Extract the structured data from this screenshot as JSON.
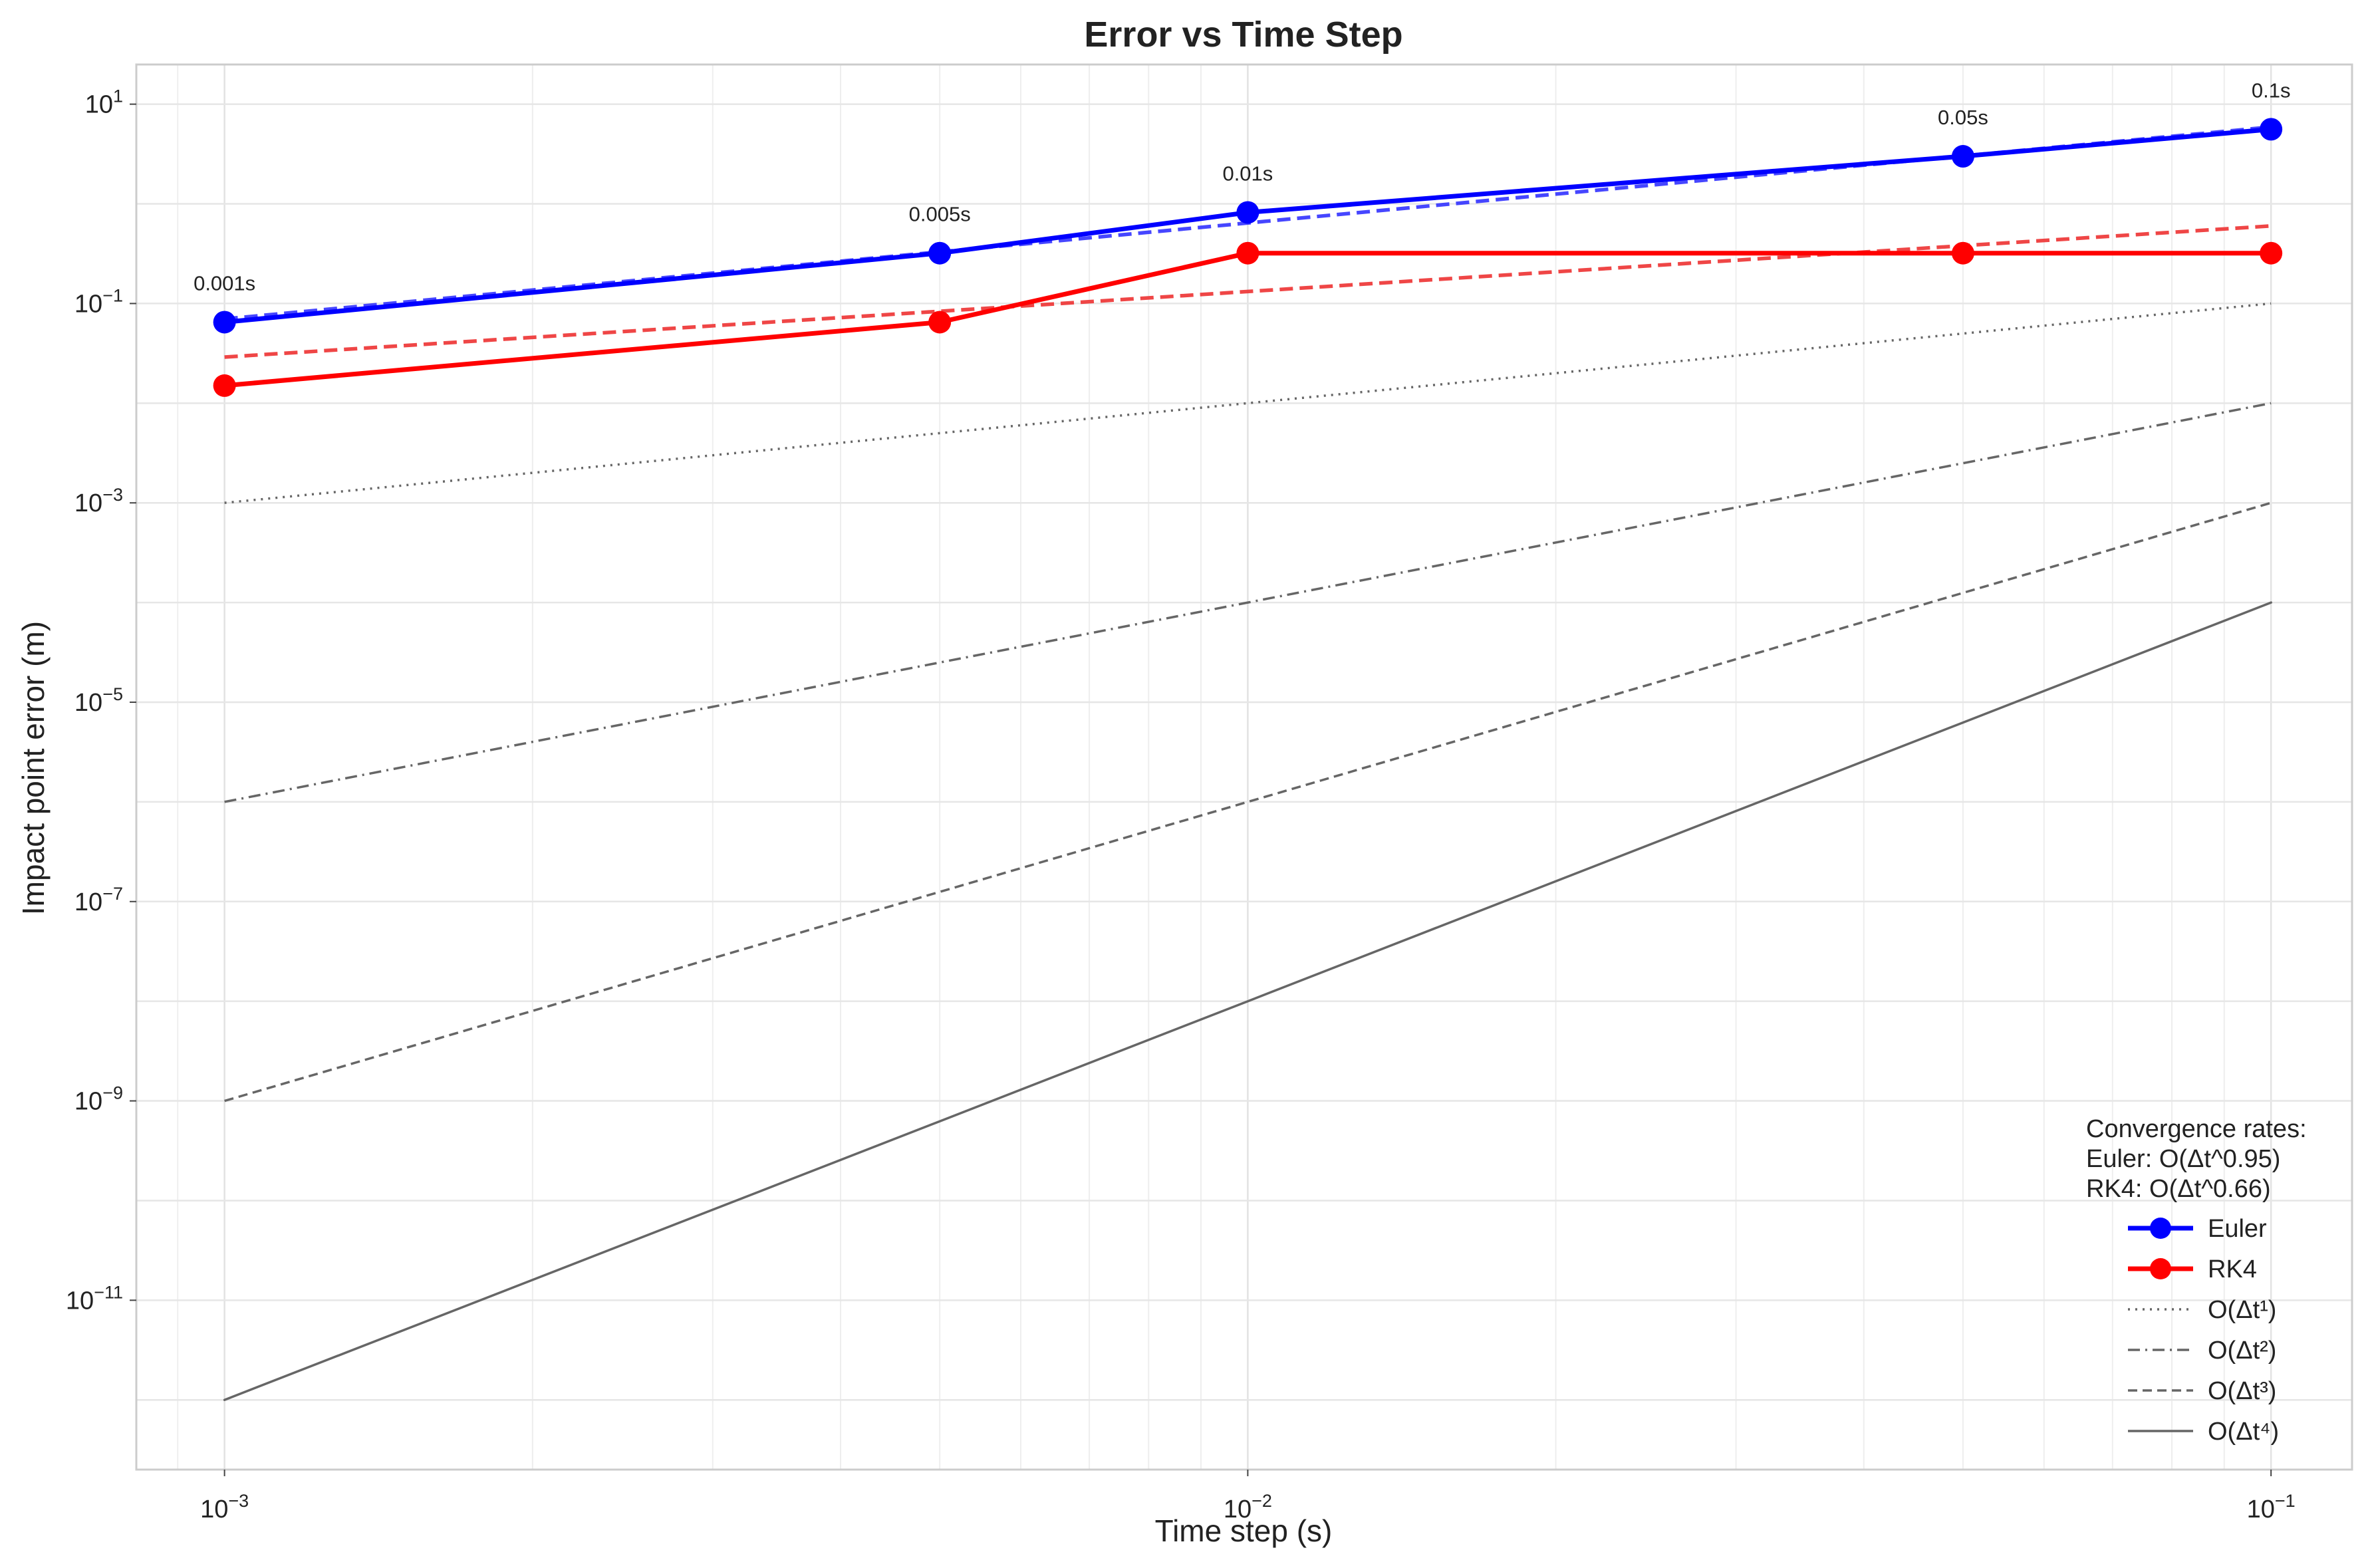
{
  "chart_data": {
    "type": "line",
    "title": "Error vs Time Step",
    "xlabel": "Time step (s)",
    "ylabel": "Impact point error (m)",
    "xscale": "log",
    "yscale": "log",
    "xlim": [
      0.00082,
      0.12
    ],
    "ylim": [
      2e-13,
      25
    ],
    "x_ticks": [
      {
        "value": 0.001,
        "label": "10",
        "exp": "−3"
      },
      {
        "value": 0.01,
        "label": "10",
        "exp": "−2"
      },
      {
        "value": 0.1,
        "label": "10",
        "exp": "−1"
      }
    ],
    "y_ticks": [
      {
        "value": 10,
        "label": "10",
        "exp": "1"
      },
      {
        "value": 0.1,
        "label": "10",
        "exp": "−1"
      },
      {
        "value": 0.001,
        "label": "10",
        "exp": "−3"
      },
      {
        "value": 1e-05,
        "label": "10",
        "exp": "−5"
      },
      {
        "value": 1e-07,
        "label": "10",
        "exp": "−7"
      },
      {
        "value": 1e-09,
        "label": "10",
        "exp": "−9"
      },
      {
        "value": 1e-11,
        "label": "10",
        "exp": "−11"
      }
    ],
    "grid": true,
    "legend_position": "lower-right",
    "x": [
      0.001,
      0.005,
      0.01,
      0.05,
      0.1
    ],
    "series": [
      {
        "name": "Euler",
        "color": "#0000ff",
        "style": "solid",
        "marker": "circle",
        "values": [
          0.065,
          0.32,
          0.82,
          3.0,
          5.6
        ]
      },
      {
        "name": "RK4",
        "color": "#ff0000",
        "style": "solid",
        "marker": "circle",
        "values": [
          0.015,
          0.065,
          0.32,
          0.32,
          0.32
        ]
      },
      {
        "name": "O(Δt¹)",
        "color": "#666666",
        "style": "dotted",
        "values": [
          0.001,
          0.005,
          0.01,
          0.05,
          0.1
        ]
      },
      {
        "name": "O(Δt²)",
        "color": "#666666",
        "style": "dashdot",
        "values": [
          1e-06,
          2.5e-05,
          0.0001,
          0.0025,
          0.01
        ]
      },
      {
        "name": "O(Δt³)",
        "color": "#666666",
        "style": "dashed",
        "values": [
          1e-09,
          1.25e-07,
          1e-06,
          0.000125,
          0.001
        ]
      },
      {
        "name": "O(Δt⁴)",
        "color": "#666666",
        "style": "solid-thin",
        "values": [
          1e-12,
          6.25e-10,
          1e-08,
          6.25e-06,
          0.0001
        ]
      }
    ],
    "fit_lines": [
      {
        "color": "#3333ff",
        "style": "dashed",
        "x": [
          0.001,
          0.1
        ],
        "values": [
          0.07,
          5.9
        ]
      },
      {
        "color": "#ee3333",
        "style": "dashed",
        "x": [
          0.001,
          0.1
        ],
        "values": [
          0.029,
          0.6
        ]
      }
    ],
    "point_labels": [
      {
        "x": 0.001,
        "y": 0.065,
        "text": "0.001s"
      },
      {
        "x": 0.005,
        "y": 0.32,
        "text": "0.005s"
      },
      {
        "x": 0.01,
        "y": 0.82,
        "text": "0.01s"
      },
      {
        "x": 0.05,
        "y": 3.0,
        "text": "0.05s"
      },
      {
        "x": 0.1,
        "y": 5.6,
        "text": "0.1s"
      }
    ],
    "legend_title": [
      "Convergence rates:",
      "Euler: O(Δt^0.95)",
      "RK4: O(Δt^0.66)"
    ]
  }
}
